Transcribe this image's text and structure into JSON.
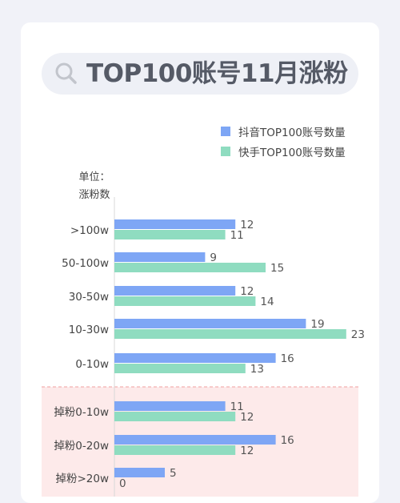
{
  "title": "TOP100账号11月涨粉",
  "icons": {
    "title_icon": "search-icon"
  },
  "unit_label": "单位：\n涨粉数",
  "colors": {
    "douyin": "#7ea6f5",
    "kuaishou": "#8fdcc0",
    "highlight_bg": "#fdeaea",
    "divider": "#f0a0a0"
  },
  "chart_data": {
    "type": "bar",
    "orientation": "horizontal",
    "title": "TOP100账号11月涨粉",
    "ylabel": "单位：涨粉数",
    "categories": [
      ">100w",
      "50-100w",
      "30-50w",
      "10-30w",
      "0-10w",
      "掉粉0-10w",
      "掉粉0-20w",
      "掉粉>20w"
    ],
    "series": [
      {
        "name": "抖音TOP100账号数量",
        "values": [
          12,
          9,
          12,
          19,
          16,
          11,
          16,
          5
        ]
      },
      {
        "name": "快手TOP100账号数量",
        "values": [
          11,
          15,
          14,
          23,
          13,
          12,
          12,
          0
        ]
      }
    ],
    "xlim": [
      0,
      24
    ],
    "grid": false,
    "legend": "top-right",
    "highlighted_categories": [
      "掉粉0-10w",
      "掉粉0-20w",
      "掉粉>20w"
    ]
  }
}
